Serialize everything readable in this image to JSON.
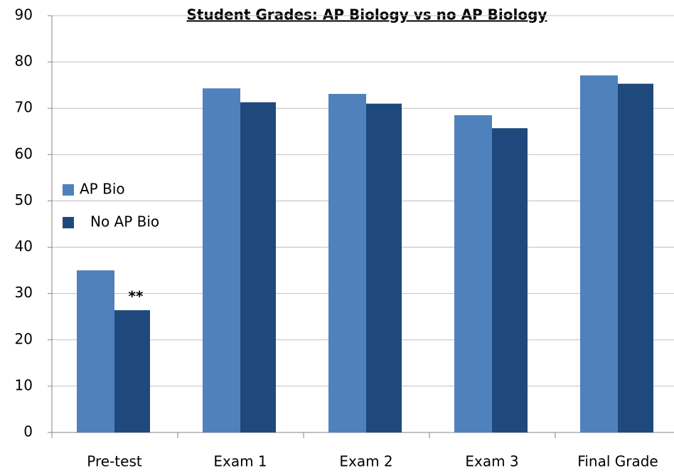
{
  "chart_data": {
    "type": "bar",
    "title": "Student Grades: AP Biology vs no AP Biology",
    "categories": [
      "Pre-test",
      "Exam 1",
      "Exam 2",
      "Exam 3",
      "Final Grade"
    ],
    "series": [
      {
        "name": "AP Bio",
        "color": "#4f81bd",
        "values": [
          35.0,
          74.3,
          73.1,
          68.5,
          77.1
        ]
      },
      {
        "name": "No AP Bio",
        "color": "#1f497d",
        "values": [
          26.4,
          71.3,
          71.0,
          65.7,
          75.3
        ]
      }
    ],
    "annotation": "**",
    "ylim": [
      0,
      90
    ],
    "yticks": [
      0,
      10,
      20,
      30,
      40,
      50,
      60,
      70,
      80,
      90
    ],
    "grid": true,
    "legend": "left"
  }
}
